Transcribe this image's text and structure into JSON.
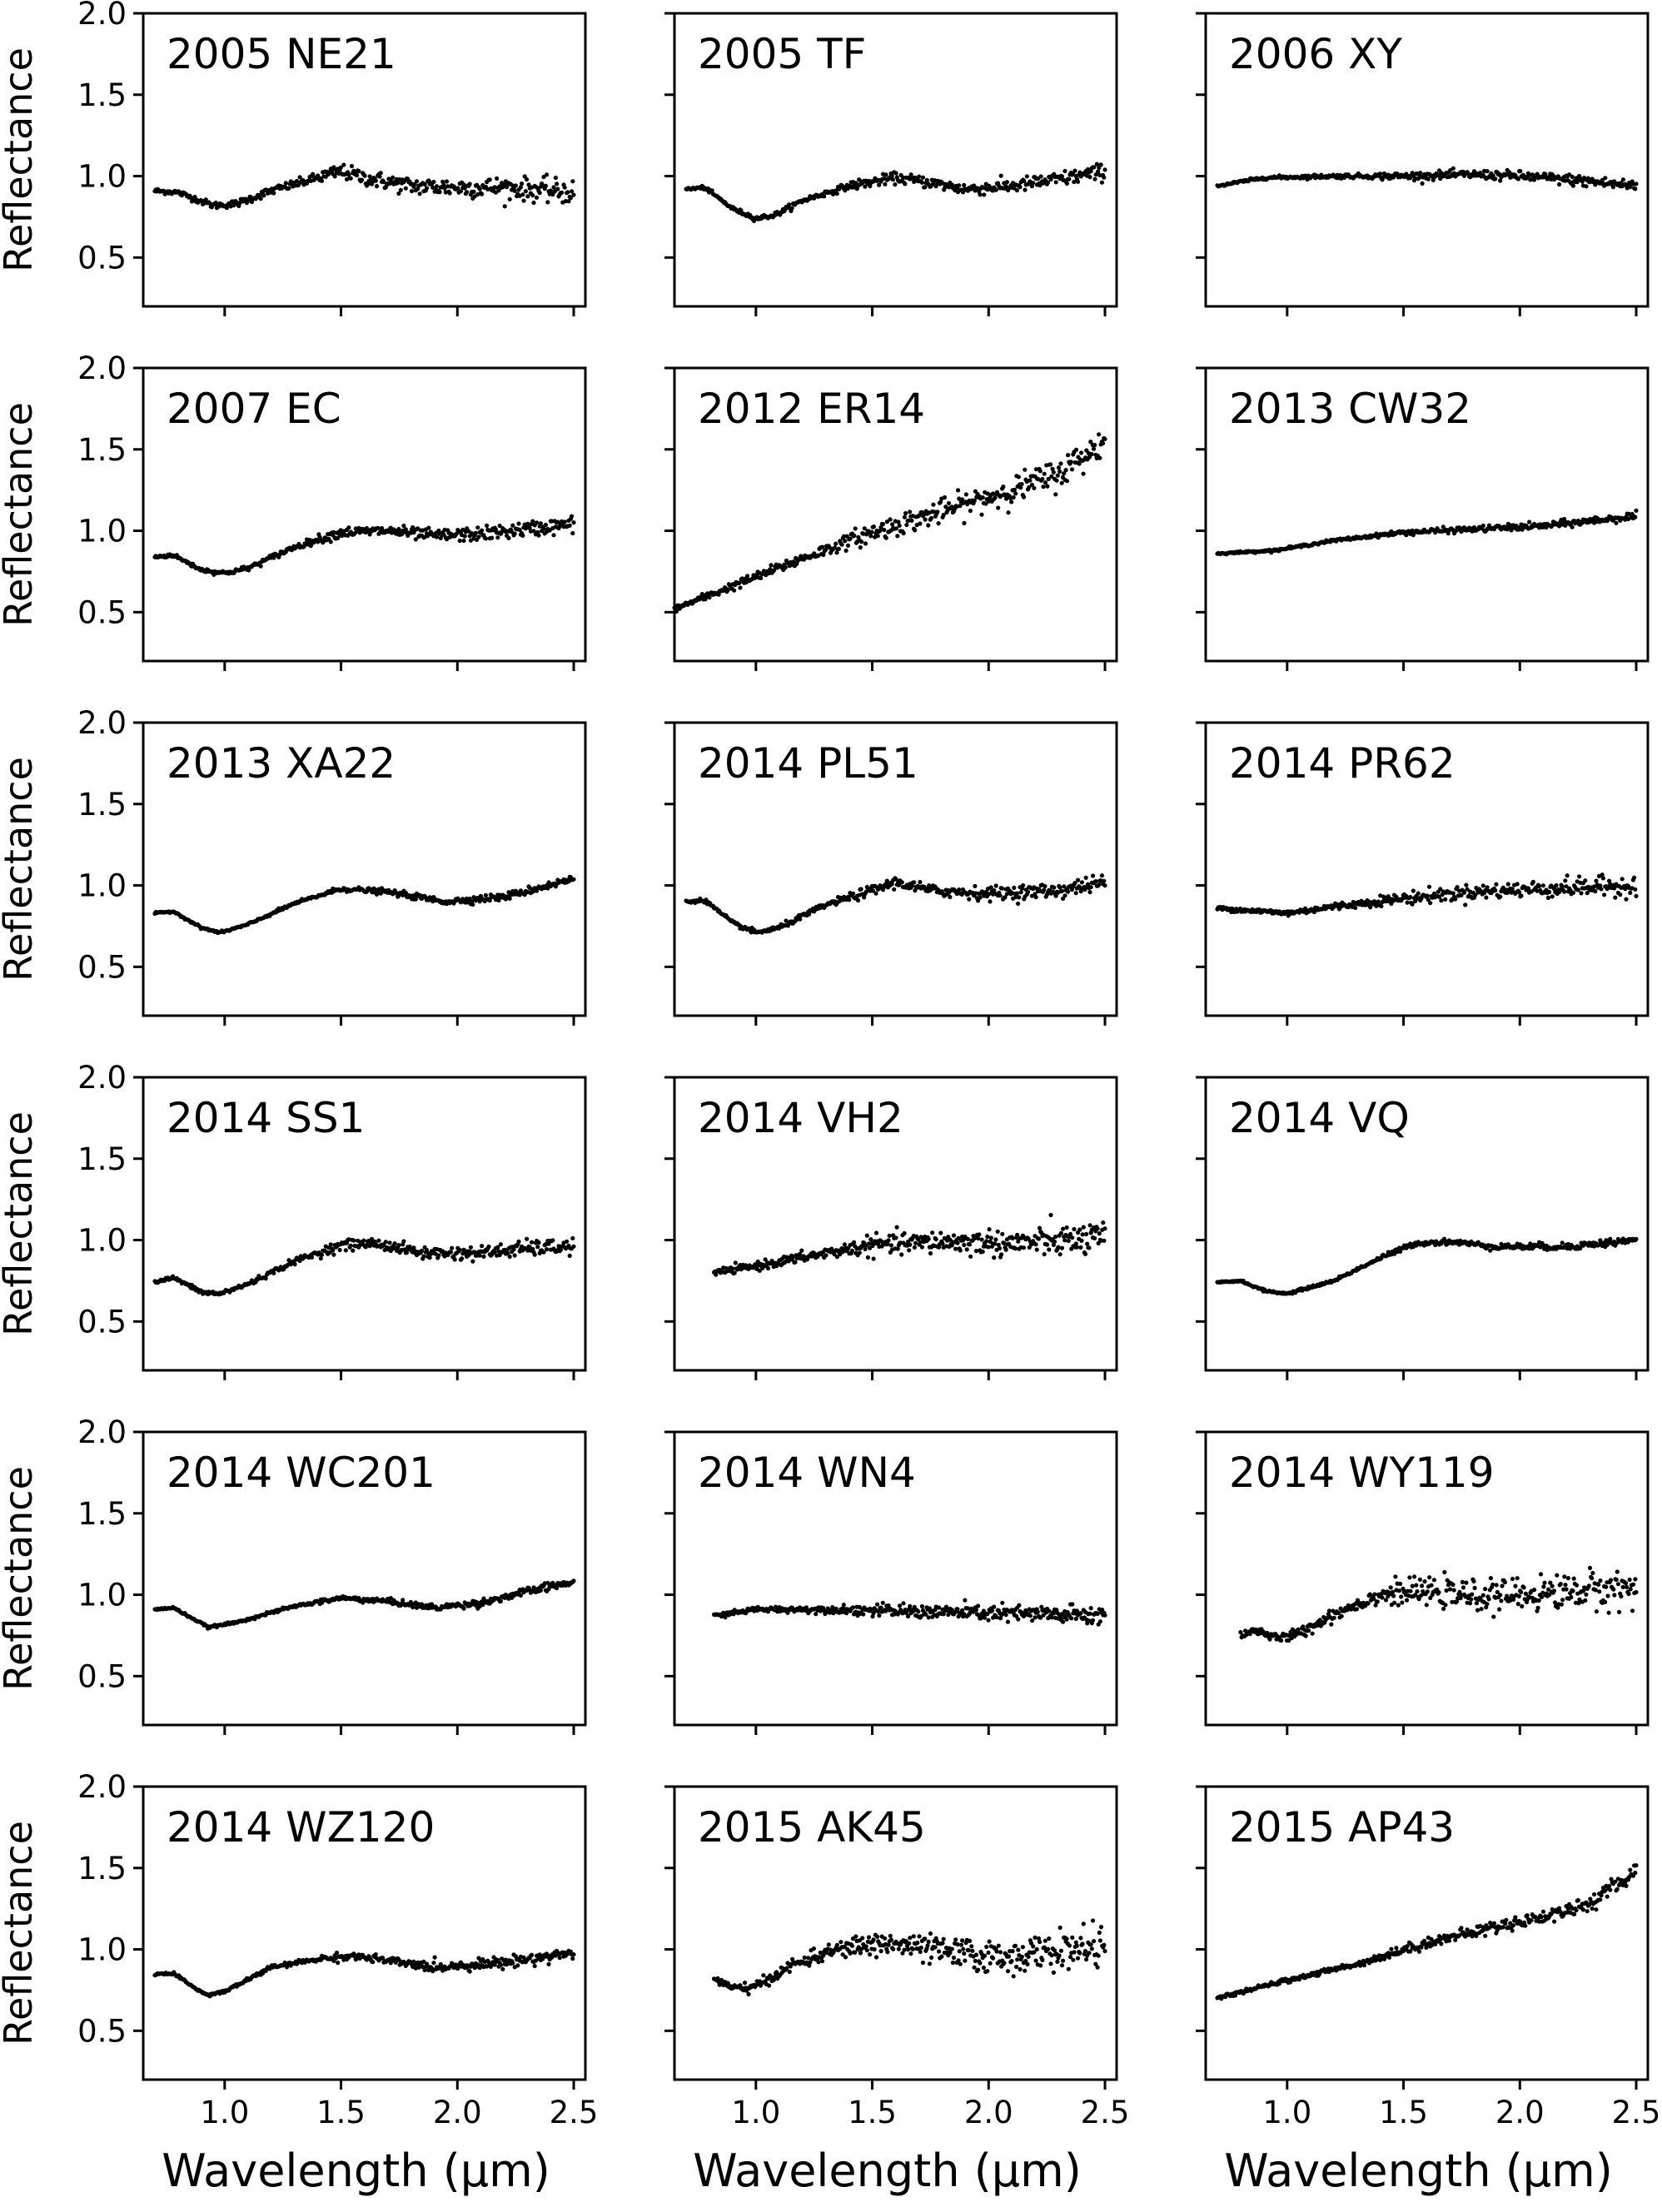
{
  "chart_data": {
    "type": "scatter",
    "grid": false,
    "layout": {
      "rows": 6,
      "cols": 3
    },
    "xlim": [
      0.65,
      2.55
    ],
    "ylim": [
      0.2,
      2.0
    ],
    "xticks": [
      1.0,
      1.5,
      2.0,
      2.5
    ],
    "xtick_labels": [
      "1.0",
      "1.5",
      "2.0",
      "2.5"
    ],
    "yticks": [
      0.5,
      1.0,
      1.5,
      2.0
    ],
    "ytick_labels": [
      "0.5",
      "1.0",
      "1.5",
      "2.0"
    ],
    "xlabel": "Wavelength (μm)",
    "ylabel": "Reflectance",
    "marker_color": "#000000",
    "panels": [
      {
        "title": "2005 NE21",
        "x_start": 0.7,
        "noise": 0.03,
        "curve": [
          [
            0.7,
            0.91
          ],
          [
            0.8,
            0.9
          ],
          [
            0.95,
            0.82
          ],
          [
            1.05,
            0.83
          ],
          [
            1.2,
            0.91
          ],
          [
            1.35,
            0.97
          ],
          [
            1.5,
            1.03
          ],
          [
            1.6,
            0.99
          ],
          [
            1.8,
            0.94
          ],
          [
            2.0,
            0.93
          ],
          [
            2.2,
            0.93
          ],
          [
            2.5,
            0.9
          ]
        ]
      },
      {
        "title": "2005 TF",
        "x_start": 0.7,
        "noise": 0.02,
        "curve": [
          [
            0.7,
            0.92
          ],
          [
            0.78,
            0.93
          ],
          [
            0.9,
            0.8
          ],
          [
            1.0,
            0.74
          ],
          [
            1.08,
            0.76
          ],
          [
            1.2,
            0.85
          ],
          [
            1.4,
            0.94
          ],
          [
            1.6,
            0.99
          ],
          [
            1.75,
            0.96
          ],
          [
            1.9,
            0.92
          ],
          [
            2.1,
            0.94
          ],
          [
            2.3,
            0.98
          ],
          [
            2.5,
            1.03
          ]
        ]
      },
      {
        "title": "2006 XY",
        "x_start": 0.7,
        "noise": 0.015,
        "curve": [
          [
            0.7,
            0.94
          ],
          [
            0.9,
            0.99
          ],
          [
            1.2,
            1.0
          ],
          [
            1.5,
            1.0
          ],
          [
            1.8,
            1.01
          ],
          [
            2.0,
            1.0
          ],
          [
            2.2,
            0.98
          ],
          [
            2.5,
            0.94
          ]
        ]
      },
      {
        "title": "2007 EC",
        "x_start": 0.7,
        "noise": 0.02,
        "curve": [
          [
            0.7,
            0.84
          ],
          [
            0.78,
            0.85
          ],
          [
            0.9,
            0.76
          ],
          [
            1.0,
            0.74
          ],
          [
            1.1,
            0.77
          ],
          [
            1.3,
            0.9
          ],
          [
            1.5,
            0.99
          ],
          [
            1.7,
            1.0
          ],
          [
            1.9,
            0.97
          ],
          [
            2.1,
            0.98
          ],
          [
            2.3,
            1.01
          ],
          [
            2.5,
            1.04
          ]
        ]
      },
      {
        "title": "2012 ER14",
        "x_start": 0.65,
        "noise": 0.04,
        "curve": [
          [
            0.65,
            0.52
          ],
          [
            0.9,
            0.66
          ],
          [
            1.2,
            0.83
          ],
          [
            1.5,
            0.99
          ],
          [
            1.8,
            1.12
          ],
          [
            2.1,
            1.25
          ],
          [
            2.3,
            1.35
          ],
          [
            2.5,
            1.55
          ]
        ]
      },
      {
        "title": "2013 CW32",
        "x_start": 0.7,
        "noise": 0.01,
        "curve": [
          [
            0.7,
            0.86
          ],
          [
            0.95,
            0.88
          ],
          [
            1.2,
            0.94
          ],
          [
            1.5,
            0.99
          ],
          [
            1.8,
            1.01
          ],
          [
            2.1,
            1.03
          ],
          [
            2.5,
            1.09
          ]
        ]
      },
      {
        "title": "2013 XA22",
        "x_start": 0.7,
        "noise": 0.01,
        "curve": [
          [
            0.7,
            0.83
          ],
          [
            0.78,
            0.84
          ],
          [
            0.9,
            0.74
          ],
          [
            0.98,
            0.71
          ],
          [
            1.1,
            0.76
          ],
          [
            1.3,
            0.89
          ],
          [
            1.5,
            0.98
          ],
          [
            1.7,
            0.96
          ],
          [
            1.95,
            0.9
          ],
          [
            2.2,
            0.93
          ],
          [
            2.5,
            1.04
          ]
        ]
      },
      {
        "title": "2014 PL51",
        "x_start": 0.7,
        "noise": 0.02,
        "curve": [
          [
            0.7,
            0.9
          ],
          [
            0.78,
            0.91
          ],
          [
            0.9,
            0.77
          ],
          [
            1.0,
            0.71
          ],
          [
            1.1,
            0.74
          ],
          [
            1.3,
            0.88
          ],
          [
            1.5,
            0.97
          ],
          [
            1.6,
            1.02
          ],
          [
            1.75,
            0.97
          ],
          [
            2.0,
            0.95
          ],
          [
            2.3,
            0.97
          ],
          [
            2.5,
            1.02
          ]
        ]
      },
      {
        "title": "2014 PR62",
        "x_start": 0.7,
        "noise": 0.025,
        "curve": [
          [
            0.7,
            0.86
          ],
          [
            0.9,
            0.84
          ],
          [
            1.0,
            0.83
          ],
          [
            1.2,
            0.87
          ],
          [
            1.5,
            0.92
          ],
          [
            1.8,
            0.96
          ],
          [
            2.1,
            0.98
          ],
          [
            2.5,
            1.0
          ]
        ]
      },
      {
        "title": "2014 SS1",
        "x_start": 0.7,
        "noise": 0.02,
        "curve": [
          [
            0.7,
            0.74
          ],
          [
            0.78,
            0.77
          ],
          [
            0.9,
            0.68
          ],
          [
            0.98,
            0.67
          ],
          [
            1.1,
            0.73
          ],
          [
            1.3,
            0.87
          ],
          [
            1.5,
            0.97
          ],
          [
            1.65,
            0.98
          ],
          [
            1.85,
            0.92
          ],
          [
            2.1,
            0.92
          ],
          [
            2.3,
            0.95
          ],
          [
            2.5,
            0.96
          ]
        ]
      },
      {
        "title": "2014 VH2",
        "x_start": 0.82,
        "noise": 0.04,
        "curve": [
          [
            0.82,
            0.8
          ],
          [
            1.0,
            0.84
          ],
          [
            1.3,
            0.92
          ],
          [
            1.5,
            0.97
          ],
          [
            1.8,
            0.99
          ],
          [
            2.1,
            0.98
          ],
          [
            2.5,
            1.01
          ]
        ]
      },
      {
        "title": "2014 VQ",
        "x_start": 0.7,
        "noise": 0.01,
        "curve": [
          [
            0.7,
            0.74
          ],
          [
            0.8,
            0.75
          ],
          [
            0.9,
            0.69
          ],
          [
            1.0,
            0.67
          ],
          [
            1.2,
            0.75
          ],
          [
            1.4,
            0.89
          ],
          [
            1.55,
            0.98
          ],
          [
            1.7,
            0.99
          ],
          [
            1.9,
            0.96
          ],
          [
            2.2,
            0.96
          ],
          [
            2.5,
            1.0
          ]
        ]
      },
      {
        "title": "2014 WC201",
        "x_start": 0.7,
        "noise": 0.01,
        "curve": [
          [
            0.7,
            0.91
          ],
          [
            0.78,
            0.92
          ],
          [
            0.93,
            0.8
          ],
          [
            1.05,
            0.83
          ],
          [
            1.3,
            0.93
          ],
          [
            1.5,
            0.98
          ],
          [
            1.7,
            0.96
          ],
          [
            1.9,
            0.92
          ],
          [
            2.1,
            0.95
          ],
          [
            2.3,
            1.02
          ],
          [
            2.5,
            1.08
          ]
        ]
      },
      {
        "title": "2014 WN4",
        "x_start": 0.82,
        "noise": 0.025,
        "curve": [
          [
            0.82,
            0.87
          ],
          [
            1.0,
            0.91
          ],
          [
            1.3,
            0.91
          ],
          [
            1.6,
            0.9
          ],
          [
            1.9,
            0.89
          ],
          [
            2.2,
            0.88
          ],
          [
            2.5,
            0.87
          ]
        ]
      },
      {
        "title": "2014 WY119",
        "x_start": 0.8,
        "noise": 0.05,
        "curve": [
          [
            0.8,
            0.76
          ],
          [
            0.88,
            0.78
          ],
          [
            0.95,
            0.73
          ],
          [
            1.05,
            0.76
          ],
          [
            1.2,
            0.88
          ],
          [
            1.4,
            1.0
          ],
          [
            1.6,
            1.02
          ],
          [
            1.8,
            0.99
          ],
          [
            2.0,
            1.0
          ],
          [
            2.3,
            1.03
          ],
          [
            2.5,
            1.04
          ]
        ]
      },
      {
        "title": "2014 WZ120",
        "x_start": 0.7,
        "noise": 0.015,
        "curve": [
          [
            0.7,
            0.85
          ],
          [
            0.78,
            0.85
          ],
          [
            0.92,
            0.72
          ],
          [
            1.0,
            0.74
          ],
          [
            1.2,
            0.89
          ],
          [
            1.4,
            0.94
          ],
          [
            1.55,
            0.96
          ],
          [
            1.7,
            0.93
          ],
          [
            1.9,
            0.89
          ],
          [
            2.2,
            0.92
          ],
          [
            2.5,
            0.98
          ]
        ]
      },
      {
        "title": "2015 AK45",
        "x_start": 0.82,
        "noise": 0.05,
        "curve": [
          [
            0.82,
            0.82
          ],
          [
            0.9,
            0.76
          ],
          [
            1.0,
            0.77
          ],
          [
            1.15,
            0.9
          ],
          [
            1.35,
            1.0
          ],
          [
            1.55,
            1.04
          ],
          [
            1.8,
            0.99
          ],
          [
            2.0,
            0.95
          ],
          [
            2.2,
            0.97
          ],
          [
            2.5,
            1.03
          ]
        ]
      },
      {
        "title": "2015 AP43",
        "x_start": 0.7,
        "noise": 0.02,
        "curve": [
          [
            0.7,
            0.7
          ],
          [
            1.0,
            0.81
          ],
          [
            1.3,
            0.91
          ],
          [
            1.6,
            1.04
          ],
          [
            1.9,
            1.14
          ],
          [
            2.1,
            1.2
          ],
          [
            2.3,
            1.28
          ],
          [
            2.5,
            1.48
          ]
        ]
      }
    ]
  }
}
